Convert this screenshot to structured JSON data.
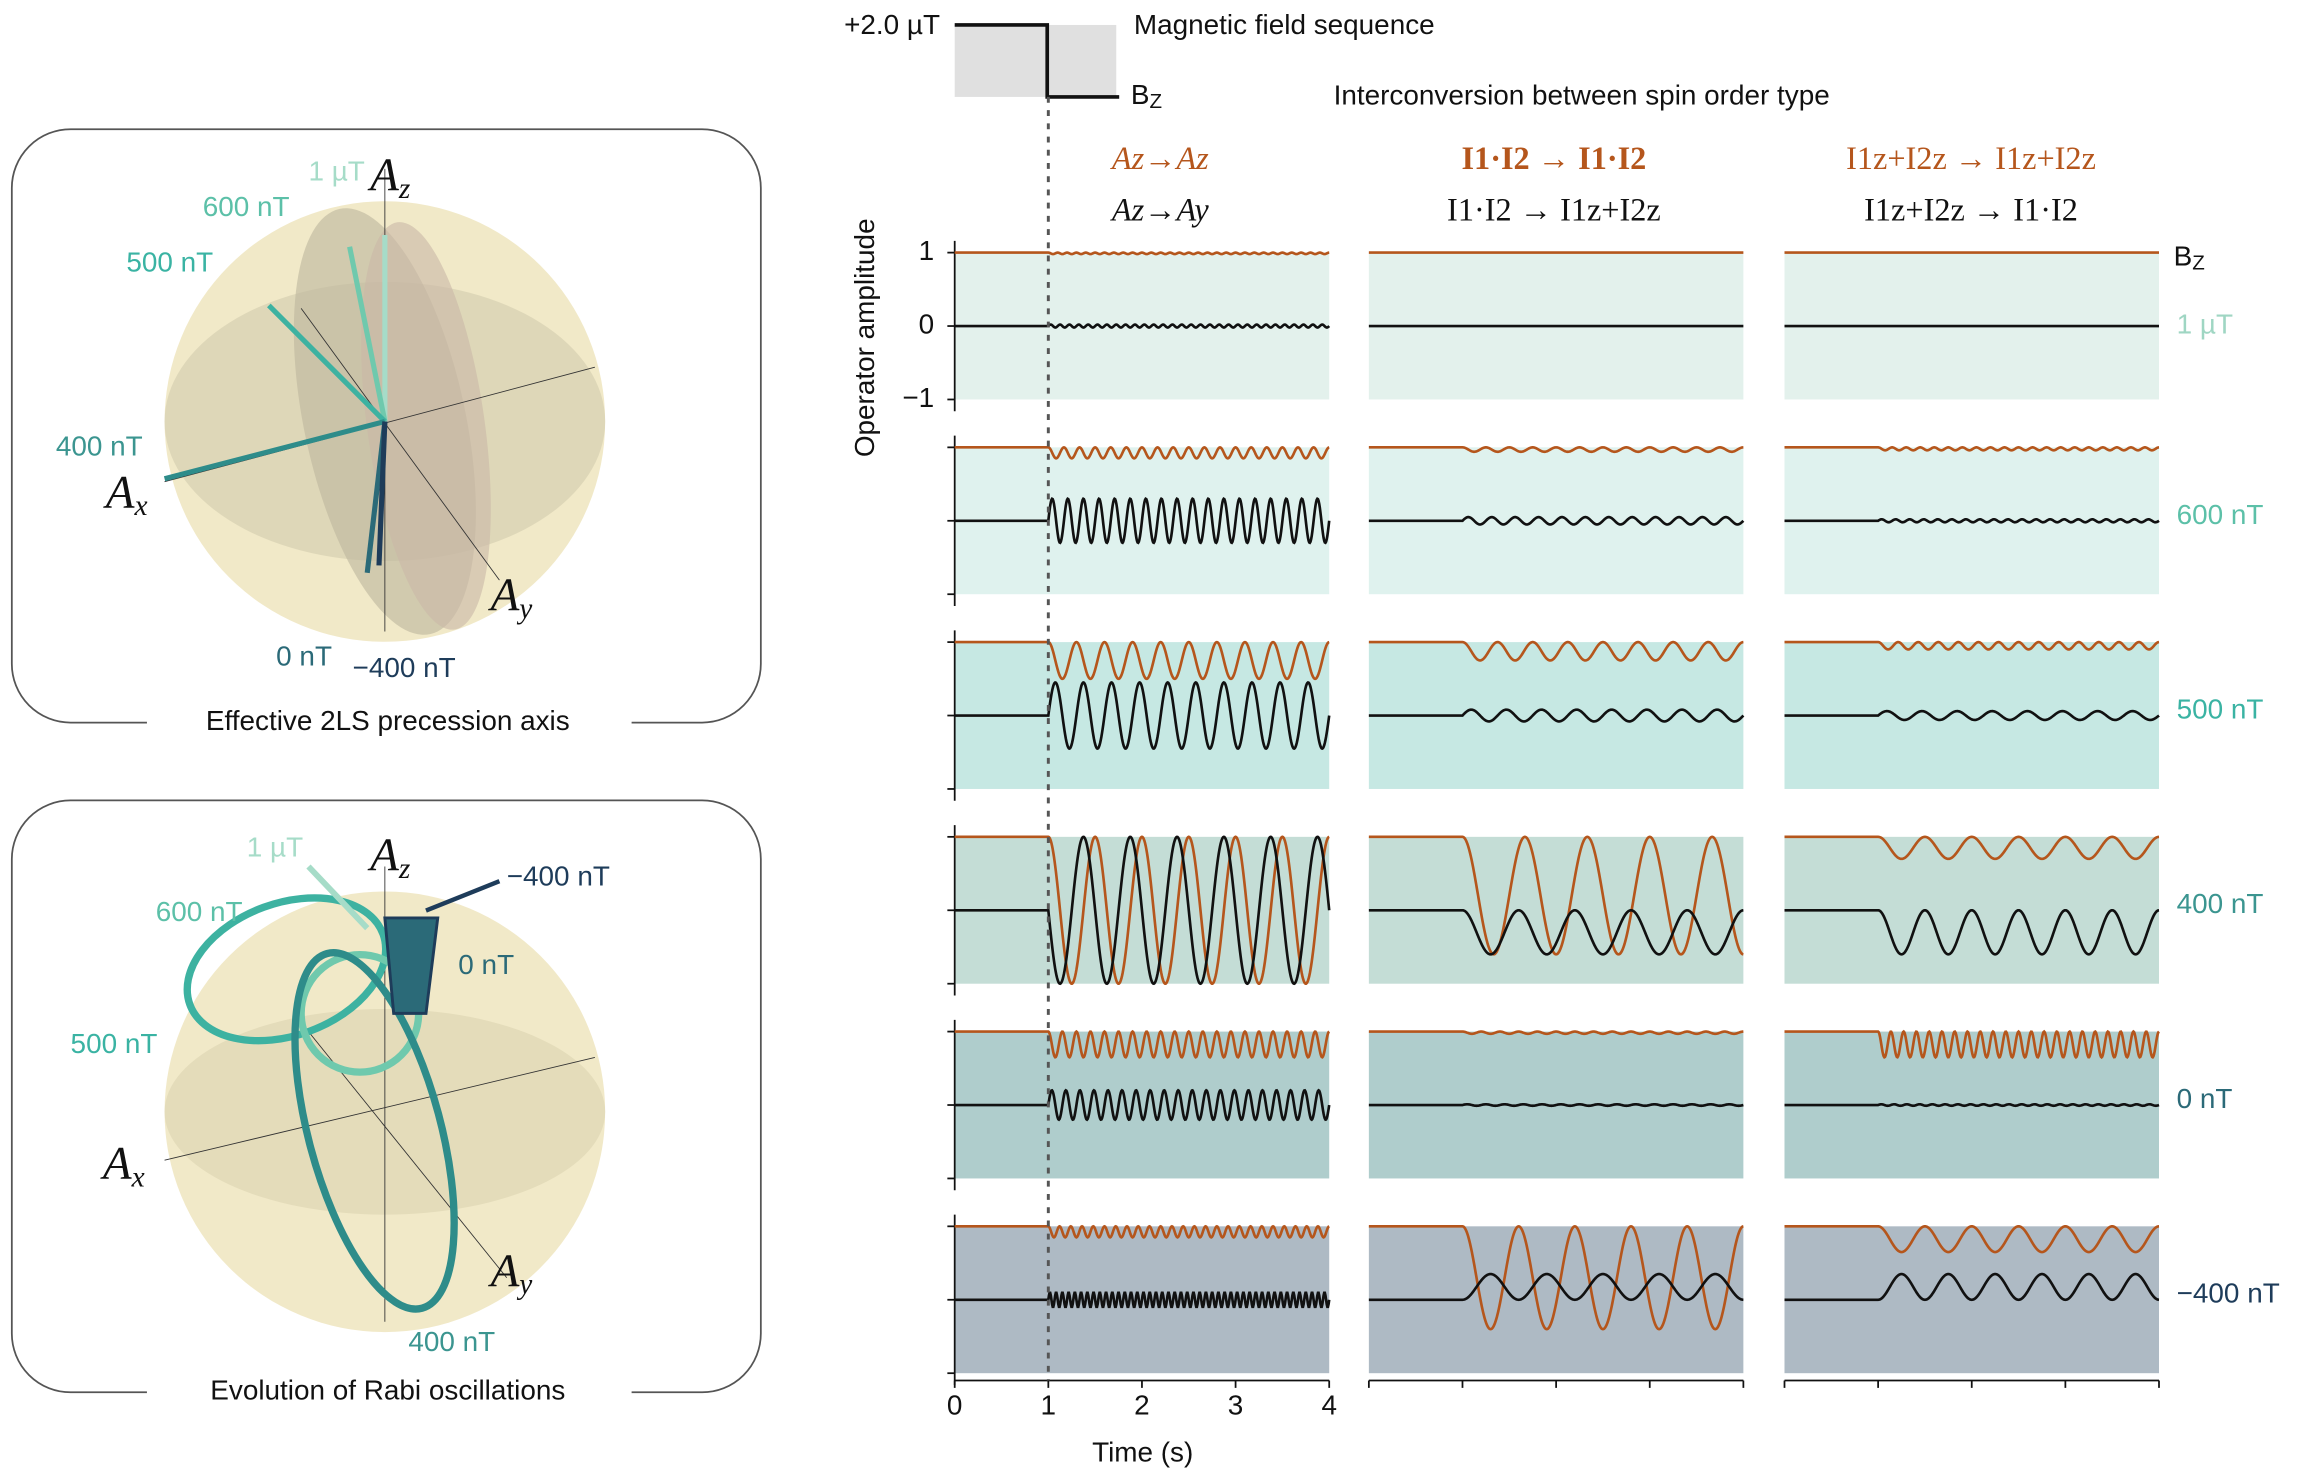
{
  "chart_data": {
    "type": "small_multiples",
    "field_sequence": {
      "level_label": "+2.0 µT",
      "title": "Magnetic field sequence",
      "axis_main": "B",
      "axis_sub": "Z",
      "subtitle": "Interconversion between spin order type"
    },
    "columns": [
      {
        "top": "Az→Az",
        "bottom": "Az→Ay"
      },
      {
        "top": "I1·I2 → I1·I2",
        "bottom": "I1·I2 → I1z+I2z"
      },
      {
        "top": "I1z+I2z → I1z+I2z",
        "bottom": "I1z+I2z → I1·I2"
      }
    ],
    "corner_main": "B",
    "corner_sub": "Z",
    "ylabel": "Operator amplitude",
    "xlabel": "Time (s)",
    "xlim": [
      0,
      4
    ],
    "xticks": [
      0,
      1,
      2,
      3,
      4
    ],
    "ylim": [
      -1,
      1
    ],
    "yticks": [
      1,
      0,
      {
        "value": -1,
        "label": "−1"
      }
    ],
    "switch_time": 1,
    "colors": {
      "first": "#b5561c",
      "second": "#111111"
    },
    "rows": [
      {
        "label": "1 µT",
        "color": "#9fd6c3",
        "bg": "#e3f1ec",
        "curves": [
          [
            {
              "start": 1,
              "depth": 0.02,
              "cycles": 30,
              "shape": "cos"
            },
            {
              "start": 0,
              "depth": 0.02,
              "cycles": 30,
              "shape": "sin"
            }
          ],
          [
            {
              "start": 1,
              "depth": 0,
              "cycles": 0,
              "shape": "cos"
            },
            {
              "start": 0,
              "depth": 0,
              "cycles": 0,
              "shape": "sin"
            }
          ],
          [
            {
              "start": 1,
              "depth": 0,
              "cycles": 0,
              "shape": "cos"
            },
            {
              "start": 0,
              "depth": 0,
              "cycles": 0,
              "shape": "sin"
            }
          ]
        ]
      },
      {
        "label": "600 nT",
        "color": "#5cc0a8",
        "bg": "#dff2ee",
        "curves": [
          [
            {
              "start": 1,
              "depth": 0.15,
              "cycles": 18,
              "shape": "cos"
            },
            {
              "start": 0,
              "depth": 0.3,
              "cycles": 18,
              "shape": "sin"
            }
          ],
          [
            {
              "start": 1,
              "depth": 0.06,
              "cycles": 12,
              "shape": "cos"
            },
            {
              "start": 0,
              "depth": 0.05,
              "cycles": 12,
              "shape": "sin"
            }
          ],
          [
            {
              "start": 1,
              "depth": 0.04,
              "cycles": 20,
              "shape": "cos"
            },
            {
              "start": 0,
              "depth": 0.02,
              "cycles": 20,
              "shape": "sin"
            }
          ]
        ]
      },
      {
        "label": "500 nT",
        "color": "#3ab3a3",
        "bg": "#c6e8e3",
        "curves": [
          [
            {
              "start": 1,
              "depth": 0.5,
              "cycles": 10,
              "shape": "cos"
            },
            {
              "start": 0,
              "depth": 0.45,
              "cycles": 10,
              "shape": "sin"
            }
          ],
          [
            {
              "start": 1,
              "depth": 0.25,
              "cycles": 8,
              "shape": "cos"
            },
            {
              "start": 0,
              "depth": 0.08,
              "cycles": 8,
              "shape": "sin"
            }
          ],
          [
            {
              "start": 1,
              "depth": 0.1,
              "cycles": 14,
              "shape": "cos"
            },
            {
              "start": 0,
              "depth": 0.06,
              "cycles": 8,
              "shape": "sin"
            }
          ]
        ]
      },
      {
        "label": "400 nT",
        "color": "#3b9590",
        "bg": "#c4ddd6",
        "curves": [
          [
            {
              "start": 1,
              "depth": 2,
              "cycles": 6,
              "shape": "cos"
            },
            {
              "start": 0,
              "depth": -1,
              "cycles": 6,
              "shape": "sin"
            }
          ],
          [
            {
              "start": 1,
              "depth": 1.6,
              "cycles": 4.5,
              "shape": "cos"
            },
            {
              "start": 0,
              "depth": 0.6,
              "cycles": 5,
              "shape": "cos"
            }
          ],
          [
            {
              "start": 1,
              "depth": 0.3,
              "cycles": 6,
              "shape": "cos"
            },
            {
              "start": 0,
              "depth": 0.6,
              "cycles": 6,
              "shape": "cos"
            }
          ]
        ]
      },
      {
        "label": "0 nT",
        "color": "#2b6a78",
        "bg": "#afcdcc",
        "curves": [
          [
            {
              "start": 1,
              "depth": 0.35,
              "cycles": 20,
              "shape": "cos"
            },
            {
              "start": 0,
              "depth": 0.2,
              "cycles": 20,
              "shape": "sin"
            }
          ],
          [
            {
              "start": 1,
              "depth": 0.03,
              "cycles": 15,
              "shape": "cos"
            },
            {
              "start": 0,
              "depth": 0.01,
              "cycles": 15,
              "shape": "sin"
            }
          ],
          [
            {
              "start": 1,
              "depth": 0.35,
              "cycles": 22,
              "shape": "cos"
            },
            {
              "start": 0,
              "depth": 0.01,
              "cycles": 22,
              "shape": "sin"
            }
          ]
        ]
      },
      {
        "label": "−400 nT",
        "color": "#1e3c5a",
        "bg": "#aebac4",
        "curves": [
          [
            {
              "start": 1,
              "depth": 0.15,
              "cycles": 25,
              "shape": "cos"
            },
            {
              "start": 0,
              "depth": 0.1,
              "cycles": 45,
              "shape": "sin"
            }
          ],
          [
            {
              "start": 1,
              "depth": 1.4,
              "cycles": 5,
              "shape": "cos"
            },
            {
              "start": 0,
              "depth": -0.35,
              "cycles": 5,
              "shape": "cos"
            }
          ],
          [
            {
              "start": 1,
              "depth": 0.35,
              "cycles": 6,
              "shape": "cos"
            },
            {
              "start": 0,
              "depth": -0.35,
              "cycles": 6,
              "shape": "cos"
            }
          ]
        ]
      }
    ],
    "sphere_top": {
      "caption": "Effective 2LS precession axis",
      "axes": {
        "z": "A",
        "zs": "z",
        "x": "A",
        "xs": "x",
        "y": "A",
        "ys": "y"
      },
      "labels": [
        "1 µT",
        "600 nT",
        "500 nT",
        "400 nT",
        "0 nT",
        "−400 nT"
      ]
    },
    "sphere_bottom": {
      "caption": "Evolution of Rabi oscillations",
      "axes": {
        "z": "A",
        "zs": "z",
        "x": "A",
        "xs": "x",
        "y": "A",
        "ys": "y"
      },
      "labels": [
        "1 µT",
        "600 nT",
        "500 nT",
        "0 nT",
        "−400 nT",
        "400 nT"
      ]
    }
  }
}
